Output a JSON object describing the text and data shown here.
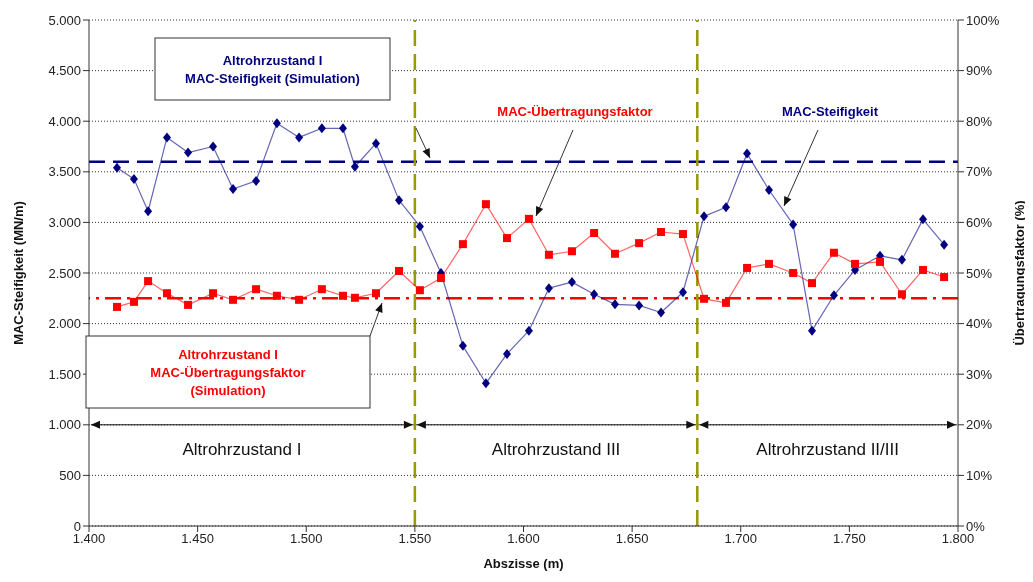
{
  "chart_data": {
    "type": "line",
    "xlabel": "Abszisse (m)",
    "ylabel": "MAC-Steifigkeit (MN/m)",
    "y2label": "Übertragungsfaktor (%)",
    "x": [
      1412.9,
      1420.7,
      1427.2,
      1435.9,
      1445.6,
      1457.1,
      1466.3,
      1476.9,
      1486.5,
      1496.7,
      1507.2,
      1516.9,
      1522.4,
      1532.1,
      1542.7,
      1552.3,
      1562.0,
      1572.1,
      1582.7,
      1592.4,
      1602.5,
      1611.7,
      1622.3,
      1632.5,
      1642.1,
      1653.2,
      1663.3,
      1673.4,
      1683.1,
      1693.2,
      1702.9,
      1713.0,
      1724.1,
      1732.8,
      1742.9,
      1752.6,
      1764.1,
      1774.2,
      1783.9,
      1793.6
    ],
    "series": [
      {
        "name": "MAC-Steifigkeit",
        "color": "#000080",
        "marker": "diamond",
        "values": [
          3540,
          3430,
          3110,
          3840,
          3690,
          3750,
          3330,
          3410,
          3980,
          3840,
          3930,
          3930,
          3550,
          3780,
          3220,
          2960,
          2500,
          1780,
          1410,
          1700,
          1930,
          2350,
          2410,
          2290,
          2190,
          2180,
          2110,
          2310,
          3060,
          3150,
          3680,
          3320,
          2980,
          1930,
          2280,
          2530,
          2670,
          2630,
          3030,
          2780
        ]
      },
      {
        "name": "MAC-Übertragungsfaktor",
        "color": "#ff0000",
        "marker": "square",
        "axis": "y2",
        "values": [
          43.3,
          44.3,
          48.4,
          46.0,
          43.7,
          46.0,
          44.7,
          46.8,
          45.5,
          44.7,
          46.8,
          45.5,
          45.1,
          46.0,
          50.4,
          46.6,
          49.0,
          55.7,
          63.6,
          56.9,
          60.7,
          53.6,
          54.3,
          57.9,
          53.8,
          55.9,
          58.1,
          57.7,
          44.9,
          44.1,
          51.0,
          51.8,
          50.0,
          48.0,
          54.0,
          51.8,
          52.2,
          45.8,
          50.6,
          49.2
        ]
      }
    ],
    "xlim": [
      1400,
      1800
    ],
    "xticks": [
      {
        "value": 1400,
        "label": "1.400"
      },
      {
        "value": 1450,
        "label": "1.450"
      },
      {
        "value": 1500,
        "label": "1.500"
      },
      {
        "value": 1550,
        "label": "1.550"
      },
      {
        "value": 1600,
        "label": "1.600"
      },
      {
        "value": 1650,
        "label": "1.650"
      },
      {
        "value": 1700,
        "label": "1.700"
      },
      {
        "value": 1750,
        "label": "1.750"
      },
      {
        "value": 1800,
        "label": "1.800"
      }
    ],
    "ylim": [
      0,
      5000
    ],
    "yticks": [
      0,
      500,
      {
        "value": 1000,
        "label": "1.000"
      },
      {
        "value": 1500,
        "label": "1.500"
      },
      {
        "value": 2000,
        "label": "2.000"
      },
      {
        "value": 2500,
        "label": "2.500"
      },
      {
        "value": 3000,
        "label": "3.000"
      },
      {
        "value": 3500,
        "label": "3.500"
      },
      {
        "value": 4000,
        "label": "4.000"
      },
      {
        "value": 4500,
        "label": "4.500"
      },
      {
        "value": 5000,
        "label": "5.000"
      }
    ],
    "y2lim": [
      0,
      100
    ],
    "y2ticks": [
      {
        "value": 0,
        "label": "0%"
      },
      {
        "value": 10,
        "label": "10%"
      },
      {
        "value": 20,
        "label": "20%"
      },
      {
        "value": 30,
        "label": "30%"
      },
      {
        "value": 40,
        "label": "40%"
      },
      {
        "value": 50,
        "label": "50%"
      },
      {
        "value": 60,
        "label": "60%"
      },
      {
        "value": 70,
        "label": "70%"
      },
      {
        "value": 80,
        "label": "80%"
      },
      {
        "value": 90,
        "label": "90%"
      },
      {
        "value": 100,
        "label": "100%"
      }
    ],
    "ref_lines": [
      {
        "axis": "y",
        "value": 3600,
        "label": "Altrohrzustand I\nMAC-Steifigkeit (Simulation)",
        "color": "#000080",
        "line_style": "dashed"
      },
      {
        "axis": "y2",
        "value": 45,
        "label": "Altrohrzustand I\nMAC-Übertragungsfaktor\n(Simulation)",
        "color": "#ff0000",
        "line_style": "dashdot"
      },
      {
        "axis": "x",
        "value": 1550,
        "color": "#999900",
        "line_style": "dashed"
      },
      {
        "axis": "x",
        "value": 1680,
        "color": "#999900",
        "line_style": "dashed"
      }
    ],
    "annotations": [
      "Altrohrzustand I",
      "Altrohrzustand III",
      "Altrohrzustand II/III"
    ],
    "grid": "y",
    "line_style": "solid"
  }
}
